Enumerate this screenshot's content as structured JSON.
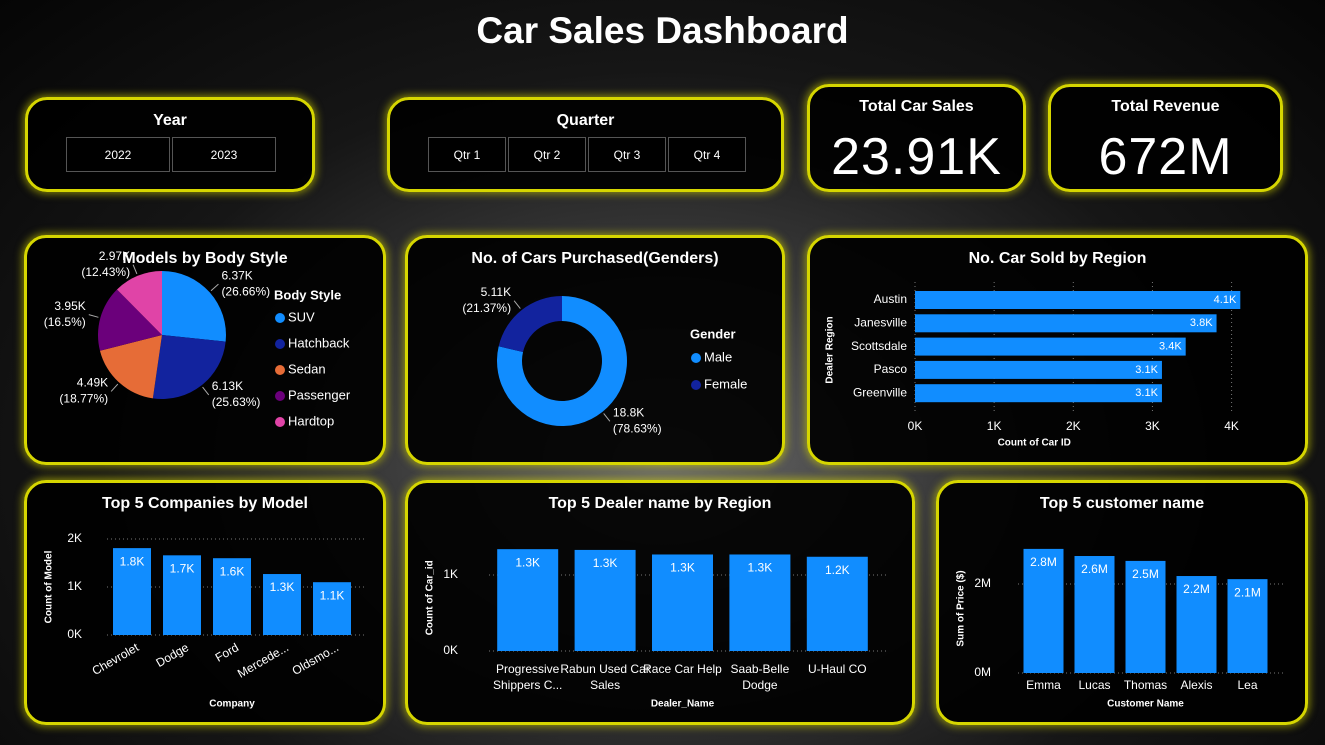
{
  "title": "Car Sales Dashboard",
  "slicers": [
    {
      "title": "Year",
      "options": [
        "2022",
        "2023"
      ]
    },
    {
      "title": "Quarter",
      "options": [
        "Qtr 1",
        "Qtr 2",
        "Qtr 3",
        "Qtr 4"
      ]
    }
  ],
  "cards": [
    {
      "label": "Total Car Sales",
      "value": "23.91K"
    },
    {
      "label": "Total Revenue",
      "value": "672M"
    }
  ],
  "chart_data": [
    {
      "type": "pie",
      "title": "Models by Body Style",
      "legend_title": "Body Style",
      "categories": [
        "SUV",
        "Hatchback",
        "Sedan",
        "Passenger",
        "Hardtop"
      ],
      "values": [
        6370,
        6130,
        4490,
        3950,
        2970
      ],
      "value_labels": [
        "6.37K",
        "6.13K",
        "4.49K",
        "3.95K",
        "2.97K"
      ],
      "percent_labels": [
        "(26.66%)",
        "(25.63%)",
        "(18.77%)",
        "(16.5%)",
        "(12.43%)"
      ],
      "colors": [
        "#118dff",
        "#12239e",
        "#e66c37",
        "#6b007b",
        "#e044a7"
      ],
      "legend": "right"
    },
    {
      "type": "donut",
      "title": "No. of Cars Purchased(Genders)",
      "legend_title": "Gender",
      "categories": [
        "Male",
        "Female"
      ],
      "values": [
        18800,
        5110
      ],
      "value_labels": [
        "18.8K",
        "5.11K"
      ],
      "percent_labels": [
        "(78.63%)",
        "(21.37%)"
      ],
      "colors": [
        "#118dff",
        "#12239e"
      ],
      "legend": "right"
    },
    {
      "type": "barh",
      "title": "No. Car Sold by Region",
      "x_label": "Count of Car ID",
      "y_label": "Dealer Region",
      "categories": [
        "Austin",
        "Janesville",
        "Scottsdale",
        "Pasco",
        "Greenville"
      ],
      "values": [
        4110,
        3810,
        3420,
        3120,
        3120
      ],
      "value_labels": [
        "4.1K",
        "3.8K",
        "3.4K",
        "3.1K",
        "3.1K"
      ],
      "color": "#118dff",
      "xlim": [
        0,
        4700
      ],
      "xticks": [
        {
          "value": 0,
          "label": "0K"
        },
        {
          "value": 1000,
          "label": "1K"
        },
        {
          "value": 2000,
          "label": "2K"
        },
        {
          "value": 3000,
          "label": "3K"
        },
        {
          "value": 4000,
          "label": "4K"
        }
      ],
      "grid": true
    },
    {
      "type": "bar",
      "title": "Top 5 Companies by Model",
      "x_label": "Company",
      "y_label": "Count of Model",
      "categories": [
        "Chevrolet",
        "Dodge",
        "Ford",
        "Mercede...",
        "Oldsmo..."
      ],
      "values": [
        1810,
        1660,
        1600,
        1270,
        1100
      ],
      "value_labels": [
        "1.8K",
        "1.7K",
        "1.6K",
        "1.3K",
        "1.1K"
      ],
      "color": "#118dff",
      "ylim": [
        0,
        2000
      ],
      "yticks": [
        {
          "value": 0,
          "label": "0K"
        },
        {
          "value": 1000,
          "label": "1K"
        },
        {
          "value": 2000,
          "label": "2K"
        }
      ],
      "grid": true
    },
    {
      "type": "bar",
      "title": "Top 5 Dealer name by Region",
      "x_label": "Dealer_Name",
      "y_label": "Count of Car_id",
      "categories": [
        "Progressive Shippers C...",
        "Rabun Used Car Sales",
        "Race Car Help",
        "Saab-Belle Dodge",
        "U-Haul CO"
      ],
      "values": [
        1340,
        1330,
        1270,
        1270,
        1240
      ],
      "value_labels": [
        "1.3K",
        "1.3K",
        "1.3K",
        "1.3K",
        "1.2K"
      ],
      "color": "#118dff",
      "ylim": [
        0,
        1400
      ],
      "yticks": [
        {
          "value": 0,
          "label": "0K"
        },
        {
          "value": 1000,
          "label": "1K"
        }
      ],
      "grid": true
    },
    {
      "type": "bar",
      "title": "Top 5 customer name",
      "x_label": "Customer Name",
      "y_label": "Sum of Price ($)",
      "categories": [
        "Emma",
        "Lucas",
        "Thomas",
        "Alexis",
        "Lea"
      ],
      "values": [
        2790000,
        2630000,
        2520000,
        2180000,
        2110000
      ],
      "value_labels": [
        "2.8M",
        "2.6M",
        "2.5M",
        "2.2M",
        "2.1M"
      ],
      "color": "#118dff",
      "ylim": [
        0,
        2900000
      ],
      "yticks": [
        {
          "value": 0,
          "label": "0M"
        },
        {
          "value": 2000000,
          "label": "2M"
        }
      ],
      "grid": true
    }
  ]
}
